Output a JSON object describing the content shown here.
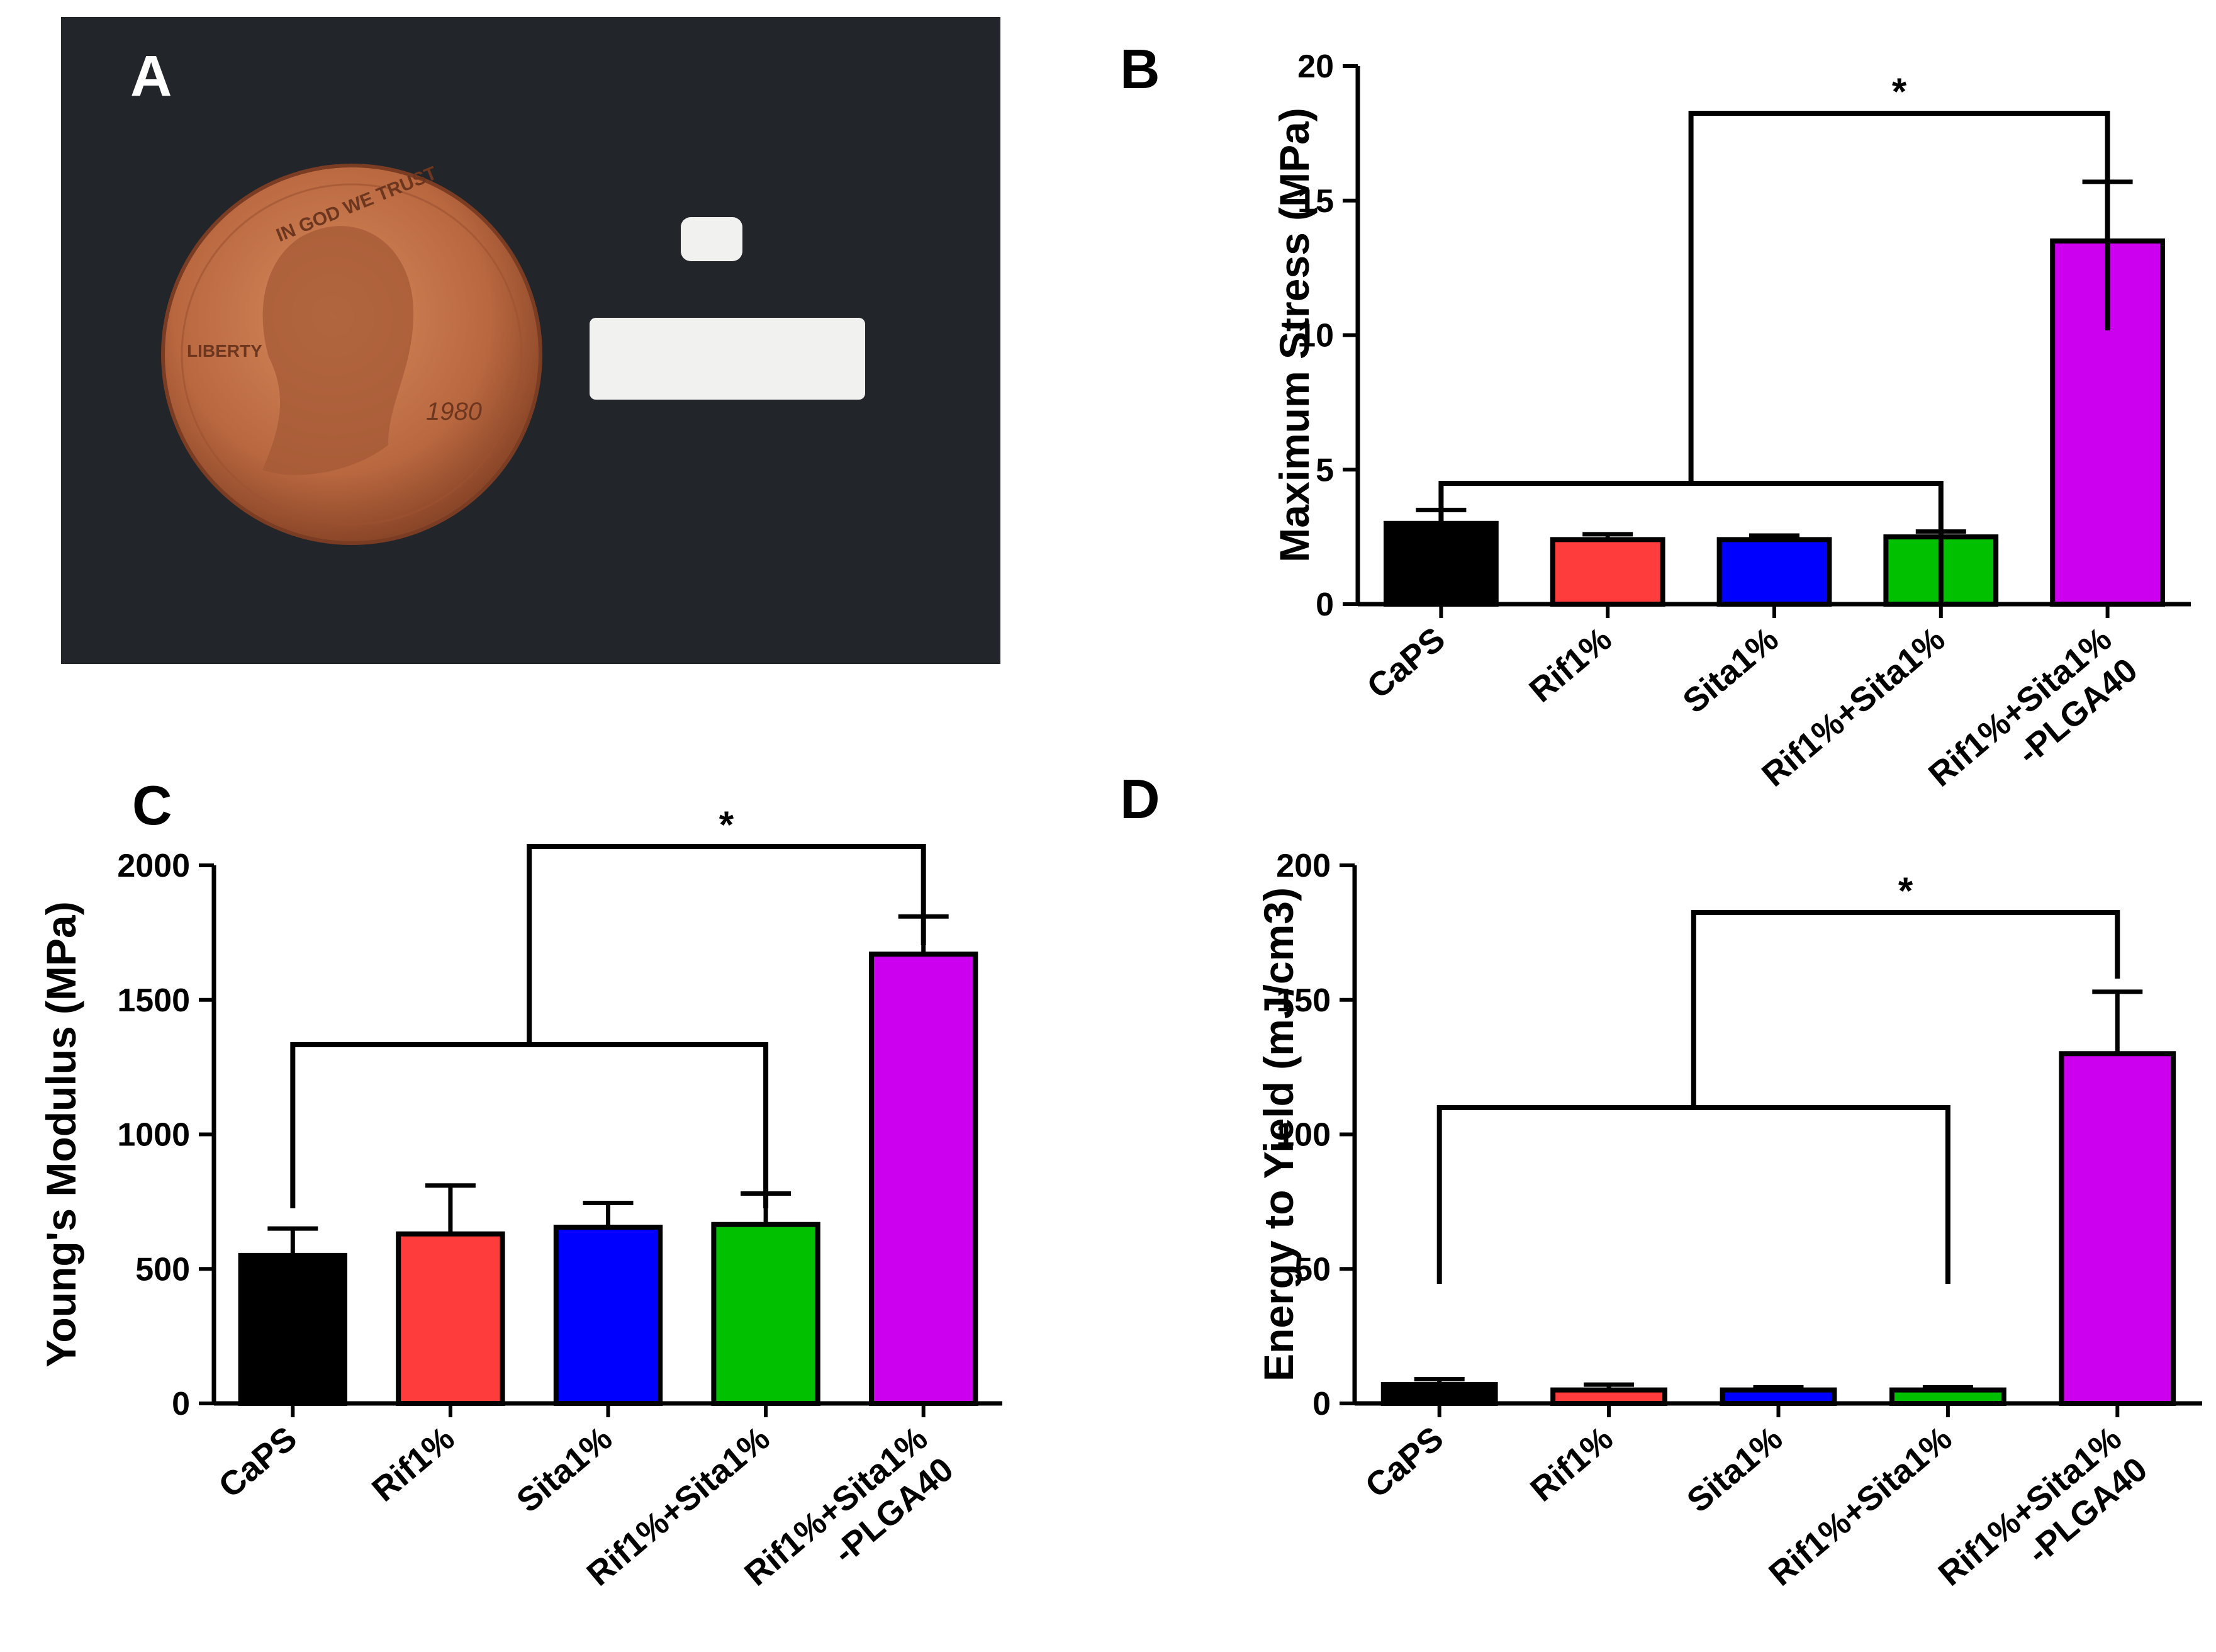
{
  "panel_labels": {
    "a": "A",
    "b": "B",
    "c": "C",
    "d": "D"
  },
  "photo": {
    "coin_text_top": "IN GOD WE TRUST",
    "coin_text_left": "LIBERTY",
    "coin_year": "1980"
  },
  "colors": {
    "background": "#ffffff",
    "photo_bg": "#22262b",
    "penny": "#b8673f",
    "specimen": "#f1f1ef",
    "series": [
      "#000000",
      "#ff3c3c",
      "#0000ff",
      "#00c000",
      "#cc00ee"
    ]
  },
  "chart_data": [
    {
      "type": "bar",
      "panel": "B",
      "ylabel": "Maximum Stress (MPa)",
      "categories": [
        "CaPS",
        "Rif1%",
        "Sita1%",
        "Rif1%+Sita1%",
        "Rif1%+Sita1% -PLGA40"
      ],
      "values": [
        3.0,
        2.4,
        2.4,
        2.5,
        13.5
      ],
      "errors": [
        0.5,
        0.2,
        0.15,
        0.2,
        2.2
      ],
      "ylim": [
        0,
        20
      ],
      "yticks": [
        0,
        5,
        10,
        15,
        20
      ],
      "significance": "*"
    },
    {
      "type": "bar",
      "panel": "C",
      "ylabel": "Young's Modulus (MPa)",
      "categories": [
        "CaPS",
        "Rif1%",
        "Sita1%",
        "Rif1%+Sita1%",
        "Rif1%+Sita1% -PLGA40"
      ],
      "values": [
        550,
        630,
        655,
        665,
        1670
      ],
      "errors": [
        100,
        180,
        90,
        115,
        140
      ],
      "ylim": [
        0,
        2000
      ],
      "yticks": [
        0,
        500,
        1000,
        1500,
        2000
      ],
      "significance": "*"
    },
    {
      "type": "bar",
      "panel": "D",
      "ylabel": "Energy to Yield (mJ/cm3)",
      "categories": [
        "CaPS",
        "Rif1%",
        "Sita1%",
        "Rif1%+Sita1%",
        "Rif1%+Sita1% -PLGA40"
      ],
      "values": [
        7,
        5,
        5,
        5,
        130
      ],
      "errors": [
        2,
        2,
        1,
        1,
        23
      ],
      "ylim": [
        0,
        200
      ],
      "yticks": [
        0,
        50,
        100,
        150,
        200
      ],
      "significance": "*"
    }
  ]
}
